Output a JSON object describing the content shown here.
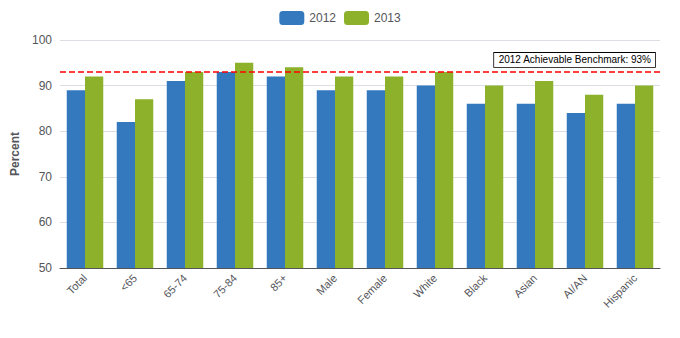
{
  "chart_data": {
    "type": "bar",
    "categories": [
      "Total",
      "<65",
      "65-74",
      "75-84",
      "85+",
      "Male",
      "Female",
      "White",
      "Black",
      "Asian",
      "AI/AN",
      "Hispanic"
    ],
    "series": [
      {
        "name": "2012",
        "color": "#3478BE",
        "values": [
          89,
          82,
          91,
          93,
          92,
          89,
          89,
          90,
          86,
          86,
          84,
          86
        ]
      },
      {
        "name": "2013",
        "color": "#8DB12A",
        "values": [
          92,
          87,
          93,
          95,
          94,
          92,
          92,
          93,
          90,
          91,
          88,
          90
        ]
      }
    ],
    "ylabel": "Percent",
    "ylim": [
      50,
      100
    ],
    "yticks": [
      50,
      60,
      70,
      80,
      90,
      100
    ],
    "grid": true,
    "legend": "top",
    "annotations": [
      {
        "text": "2012 Achievable Benchmark: 93%",
        "y": 93,
        "color": "red",
        "line_style": "dashed"
      }
    ]
  }
}
